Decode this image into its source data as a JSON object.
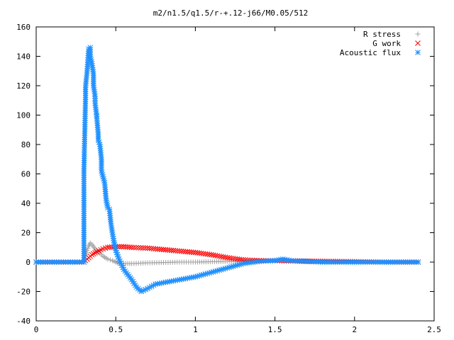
{
  "chart_data": {
    "type": "scatter",
    "title": "m2/n1.5/q1.5/r-+.12-j66/M0.05/512",
    "xlabel": "",
    "ylabel": "",
    "xlim": [
      0,
      2.5
    ],
    "ylim": [
      -40,
      160
    ],
    "x_ticks": [
      0,
      0.5,
      1,
      1.5,
      2,
      2.5
    ],
    "x_tick_labels": [
      "0",
      "0.5",
      "1",
      "1.5",
      "2",
      "2.5"
    ],
    "y_ticks": [
      -40,
      -20,
      0,
      20,
      40,
      60,
      80,
      100,
      120,
      140,
      160
    ],
    "y_tick_labels": [
      "-40",
      "-20",
      "0",
      "20",
      "40",
      "60",
      "80",
      "100",
      "120",
      "140",
      "160"
    ],
    "grid": false,
    "legend_position": "top-right",
    "series": [
      {
        "name": "R stress",
        "marker": "+",
        "color": "#a0a0a0",
        "points": [
          [
            0.0,
            0
          ],
          [
            0.1,
            0
          ],
          [
            0.2,
            0
          ],
          [
            0.3,
            0
          ],
          [
            0.31,
            4
          ],
          [
            0.32,
            8
          ],
          [
            0.33,
            11
          ],
          [
            0.34,
            13
          ],
          [
            0.35,
            12
          ],
          [
            0.37,
            9
          ],
          [
            0.39,
            7
          ],
          [
            0.42,
            4
          ],
          [
            0.45,
            2
          ],
          [
            0.48,
            1
          ],
          [
            0.5,
            0
          ],
          [
            0.52,
            -1
          ],
          [
            0.55,
            -1
          ],
          [
            0.6,
            -1
          ],
          [
            0.7,
            -0.5
          ],
          [
            0.8,
            -0.3
          ],
          [
            0.9,
            0
          ],
          [
            1.0,
            0
          ],
          [
            1.2,
            0.5
          ],
          [
            1.4,
            1
          ],
          [
            1.5,
            1
          ],
          [
            1.6,
            0.5
          ],
          [
            1.8,
            0
          ],
          [
            2.0,
            0
          ],
          [
            2.2,
            0
          ],
          [
            2.4,
            0
          ]
        ]
      },
      {
        "name": "G work",
        "marker": "x",
        "color": "#ff0000",
        "points": [
          [
            0.0,
            0
          ],
          [
            0.1,
            0
          ],
          [
            0.2,
            0
          ],
          [
            0.3,
            0
          ],
          [
            0.32,
            2
          ],
          [
            0.35,
            5
          ],
          [
            0.38,
            7
          ],
          [
            0.42,
            9
          ],
          [
            0.45,
            10
          ],
          [
            0.5,
            10.5
          ],
          [
            0.55,
            10.5
          ],
          [
            0.6,
            10
          ],
          [
            0.7,
            9.5
          ],
          [
            0.8,
            8.5
          ],
          [
            0.9,
            7.5
          ],
          [
            1.0,
            6.5
          ],
          [
            1.1,
            5
          ],
          [
            1.2,
            3
          ],
          [
            1.3,
            1.5
          ],
          [
            1.4,
            1
          ],
          [
            1.5,
            1
          ],
          [
            1.6,
            0.8
          ],
          [
            1.8,
            0.5
          ],
          [
            2.0,
            0.3
          ],
          [
            2.2,
            0
          ],
          [
            2.4,
            0
          ]
        ]
      },
      {
        "name": "Acoustic flux",
        "marker": "*",
        "color": "#1e90ff",
        "points": [
          [
            0.0,
            0
          ],
          [
            0.1,
            0
          ],
          [
            0.2,
            0
          ],
          [
            0.3,
            0
          ],
          [
            0.3,
            62
          ],
          [
            0.31,
            112
          ],
          [
            0.31,
            119
          ],
          [
            0.32,
            130
          ],
          [
            0.33,
            145
          ],
          [
            0.34,
            146
          ],
          [
            0.34,
            140
          ],
          [
            0.35,
            135
          ],
          [
            0.36,
            128
          ],
          [
            0.36,
            120
          ],
          [
            0.37,
            113
          ],
          [
            0.37,
            108
          ],
          [
            0.38,
            100
          ],
          [
            0.38,
            99
          ],
          [
            0.39,
            87
          ],
          [
            0.39,
            83
          ],
          [
            0.4,
            80
          ],
          [
            0.41,
            70
          ],
          [
            0.41,
            62
          ],
          [
            0.42,
            58
          ],
          [
            0.43,
            54
          ],
          [
            0.44,
            42
          ],
          [
            0.45,
            37
          ],
          [
            0.46,
            36
          ],
          [
            0.47,
            26
          ],
          [
            0.48,
            19
          ],
          [
            0.49,
            13
          ],
          [
            0.5,
            8
          ],
          [
            0.52,
            2
          ],
          [
            0.55,
            -5
          ],
          [
            0.6,
            -12
          ],
          [
            0.63,
            -17
          ],
          [
            0.66,
            -20
          ],
          [
            0.7,
            -18
          ],
          [
            0.75,
            -15
          ],
          [
            0.8,
            -14
          ],
          [
            0.9,
            -12
          ],
          [
            1.0,
            -10
          ],
          [
            1.1,
            -7
          ],
          [
            1.2,
            -4
          ],
          [
            1.3,
            -1
          ],
          [
            1.4,
            0.5
          ],
          [
            1.5,
            1
          ],
          [
            1.55,
            2
          ],
          [
            1.6,
            1
          ],
          [
            1.7,
            0.5
          ],
          [
            1.8,
            0
          ],
          [
            2.0,
            0
          ],
          [
            2.2,
            0
          ],
          [
            2.4,
            0
          ]
        ]
      }
    ]
  }
}
